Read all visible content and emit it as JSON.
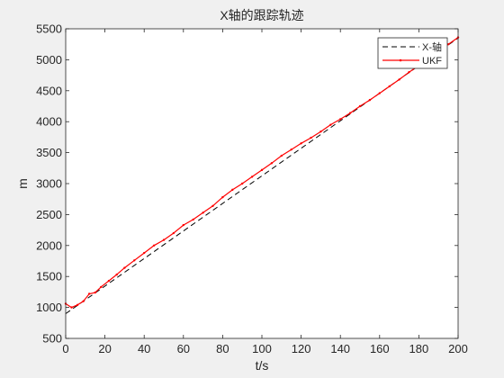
{
  "chart_data": {
    "type": "line",
    "title": "X轴的跟踪轨迹",
    "xlabel": "t/s",
    "ylabel": "m",
    "xlim": [
      0,
      200
    ],
    "ylim": [
      500,
      5500
    ],
    "xticks": [
      0,
      20,
      40,
      60,
      80,
      100,
      120,
      140,
      160,
      180,
      200
    ],
    "yticks": [
      500,
      1000,
      1500,
      2000,
      2500,
      3000,
      3500,
      4000,
      4500,
      5000,
      5500
    ],
    "grid": false,
    "legend_position": "top-right",
    "series": [
      {
        "name": "X-轴",
        "style": "dashed",
        "color": "#000000",
        "x": [
          0,
          200
        ],
        "y": [
          900,
          5350
        ]
      },
      {
        "name": "UKF",
        "style": "solid-dot",
        "color": "#ff0000",
        "x": [
          0,
          3,
          6,
          9,
          12,
          15,
          18,
          22,
          26,
          30,
          35,
          40,
          45,
          50,
          55,
          60,
          65,
          70,
          75,
          80,
          85,
          90,
          95,
          100,
          105,
          110,
          115,
          120,
          125,
          130,
          135,
          140,
          145,
          150,
          155,
          160,
          165,
          170,
          175,
          180,
          185,
          190,
          195,
          200
        ],
        "y": [
          1060,
          1000,
          1040,
          1100,
          1220,
          1240,
          1330,
          1430,
          1530,
          1640,
          1760,
          1880,
          2000,
          2090,
          2200,
          2330,
          2420,
          2530,
          2640,
          2780,
          2900,
          3000,
          3110,
          3220,
          3330,
          3450,
          3550,
          3650,
          3740,
          3840,
          3950,
          4040,
          4140,
          4250,
          4350,
          4460,
          4570,
          4680,
          4800,
          4910,
          5030,
          5140,
          5250,
          5360
        ]
      }
    ]
  }
}
